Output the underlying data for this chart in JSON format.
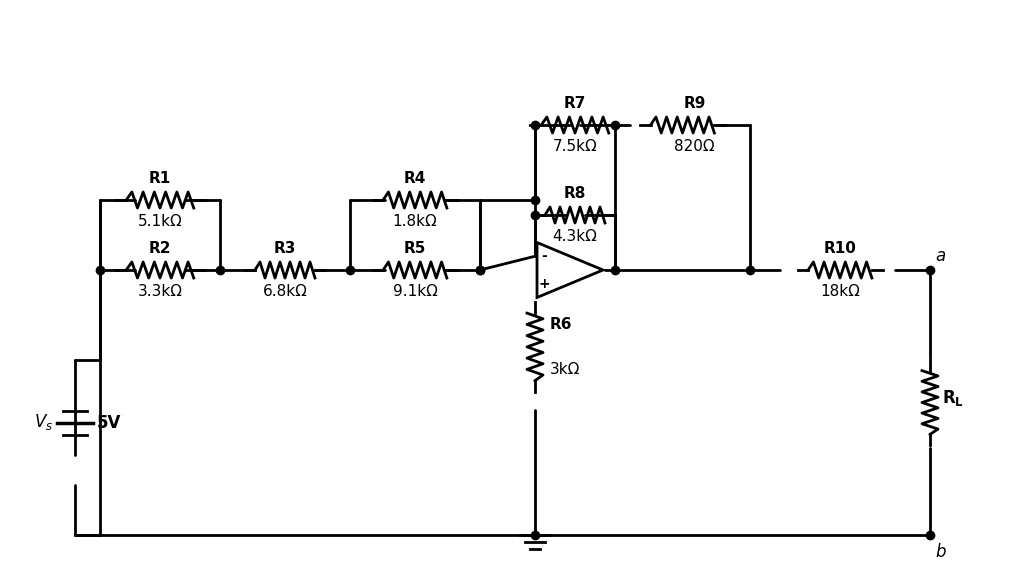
{
  "bg_color": "#ffffff",
  "line_color": "#000000",
  "line_width": 2.0,
  "dot_size": 6,
  "resistors": {
    "R1": {
      "label": "R1",
      "value": "5.1kΩ"
    },
    "R2": {
      "label": "R2",
      "value": "3.3kΩ"
    },
    "R3": {
      "label": "R3",
      "value": "6.8kΩ"
    },
    "R4": {
      "label": "R4",
      "value": "1.8kΩ"
    },
    "R5": {
      "label": "R5",
      "value": "9.1kΩ"
    },
    "R6": {
      "label": "R6",
      "value": "3kΩ"
    },
    "R7": {
      "label": "R7",
      "value": "7.5kΩ"
    },
    "R8": {
      "label": "R8",
      "value": "4.3kΩ"
    },
    "R9": {
      "label": "R9",
      "value": "820Ω"
    },
    "R10": {
      "label": "R10",
      "value": "18kΩ"
    },
    "RL": {
      "label": "R_L",
      "value": ""
    }
  },
  "font_size_label": 11,
  "font_size_value": 11,
  "font_size_node": 12
}
